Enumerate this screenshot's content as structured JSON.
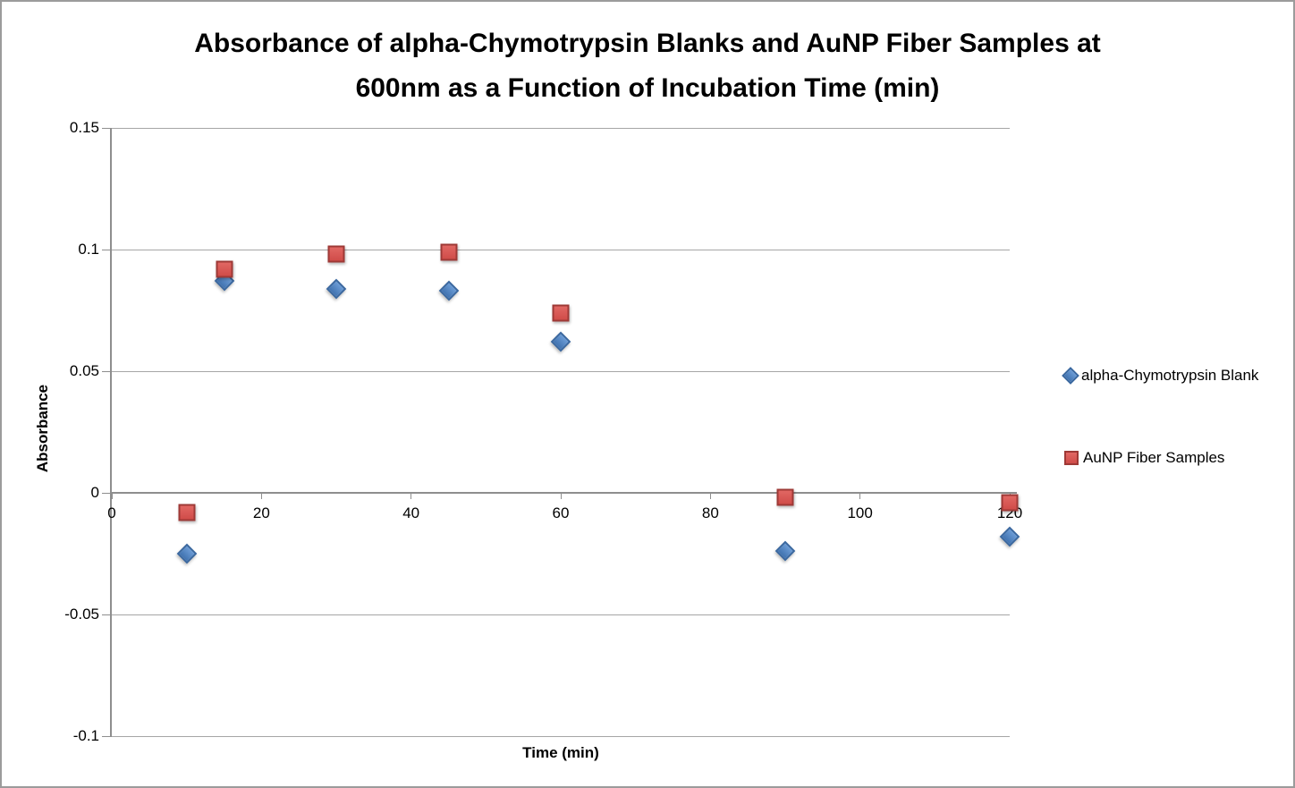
{
  "frame": {
    "background": "#FFFFFF",
    "border_color": "#9B9B9B"
  },
  "chart_data": {
    "type": "scatter",
    "title": "Absorbance of alpha-Chymotrypsin Blanks and AuNP Fiber Samples at\n600nm as a Function of Incubation Time (min)",
    "xlabel": "Time (min)",
    "ylabel": "Absorbance",
    "xlim": [
      0,
      120
    ],
    "ylim": [
      -0.1,
      0.15
    ],
    "xticks": [
      0,
      20,
      40,
      60,
      80,
      100,
      120
    ],
    "yticks": [
      0.15,
      0.1,
      0.05,
      0,
      -0.05,
      -0.1
    ],
    "grid": true,
    "legend_position": "right-outside",
    "x": [
      10,
      15,
      30,
      45,
      60,
      90,
      120
    ],
    "series": [
      {
        "name": "alpha-Chymotrypsin Blank",
        "marker": "diamond",
        "fill": "#4E86C6",
        "border": "#39679F",
        "values": [
          -0.025,
          0.087,
          0.084,
          0.083,
          0.062,
          -0.024,
          -0.018
        ]
      },
      {
        "name": "AuNP Fiber Samples",
        "marker": "square",
        "fill": "#DA5450",
        "border": "#9E3936",
        "values": [
          -0.008,
          0.092,
          0.098,
          0.099,
          0.074,
          -0.002,
          -0.004
        ]
      }
    ],
    "colors": {
      "gridline": "#A6A6A6",
      "axis": "#8E8E8E",
      "text": "#000000"
    }
  }
}
